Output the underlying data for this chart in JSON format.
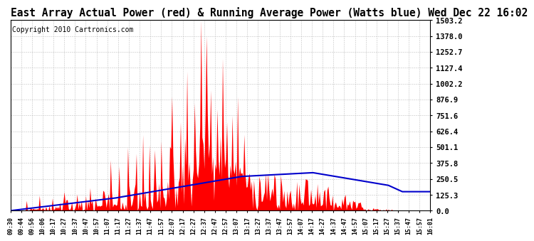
{
  "title": "East Array Actual Power (red) & Running Average Power (Watts blue) Wed Dec 22 16:02",
  "copyright": "Copyright 2010 Cartronics.com",
  "ytick_labels": [
    "0.0",
    "125.3",
    "250.5",
    "375.8",
    "501.1",
    "626.4",
    "751.6",
    "876.9",
    "1002.2",
    "1127.4",
    "1252.7",
    "1378.0",
    "1503.2"
  ],
  "ytick_values": [
    0.0,
    125.3,
    250.5,
    375.8,
    501.1,
    626.4,
    751.6,
    876.9,
    1002.2,
    1127.4,
    1252.7,
    1378.0,
    1503.2
  ],
  "ymax": 1503.2,
  "ymin": 0.0,
  "xtick_labels": [
    "09:30",
    "09:44",
    "09:56",
    "10:06",
    "10:17",
    "10:27",
    "10:37",
    "10:47",
    "10:57",
    "11:07",
    "11:17",
    "11:27",
    "11:37",
    "11:47",
    "11:57",
    "12:07",
    "12:17",
    "12:27",
    "12:37",
    "12:47",
    "12:57",
    "13:07",
    "13:17",
    "13:27",
    "13:37",
    "13:47",
    "13:57",
    "14:07",
    "14:17",
    "14:27",
    "14:37",
    "14:47",
    "14:57",
    "15:07",
    "15:17",
    "15:27",
    "15:37",
    "15:47",
    "15:57",
    "16:01"
  ],
  "bg_color": "#ffffff",
  "plot_bg_color": "#ffffff",
  "red_color": "#ff0000",
  "blue_color": "#0000cc",
  "grid_color": "#bbbbbb",
  "title_fontsize": 10.5,
  "copyright_fontsize": 7,
  "ytick_fontsize": 7.5,
  "xtick_fontsize": 6
}
